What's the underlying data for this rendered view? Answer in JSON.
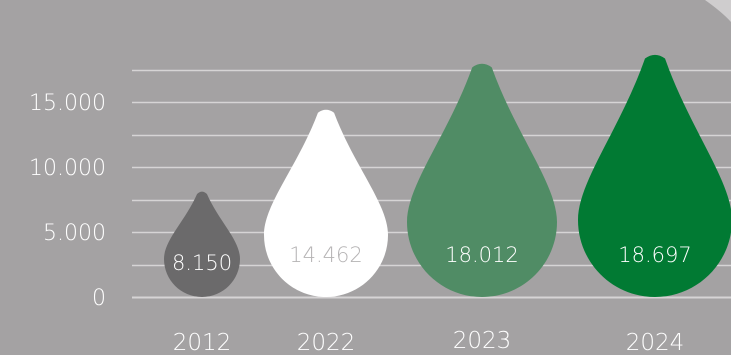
{
  "chart_data": {
    "type": "bar",
    "categories": [
      "2012",
      "2022",
      "2023",
      "2024"
    ],
    "values": [
      8150,
      14462,
      18012,
      18697
    ],
    "data_labels": [
      "8.150",
      "14.462",
      "18.012",
      "18.697"
    ],
    "ylim": [
      0,
      18000
    ],
    "yticks": [
      {
        "value": 0,
        "label": "0"
      },
      {
        "value": 5000,
        "label": "5.000"
      },
      {
        "value": 10000,
        "label": "10.000"
      },
      {
        "value": 15000,
        "label": "15.000"
      }
    ],
    "grid": true,
    "legend": "none",
    "mark_shape": "water-drop",
    "colors": {
      "background": "#a4a2a3",
      "gridline": "#d6d4d5",
      "axis_text": "#ffffff",
      "bars": [
        "#6b6a6b",
        "#ffffff",
        "#508c65",
        "#017a33"
      ],
      "label_text": [
        "#ffffff",
        "#b5b3b4",
        "#ffffff",
        "#ffffff"
      ]
    }
  }
}
